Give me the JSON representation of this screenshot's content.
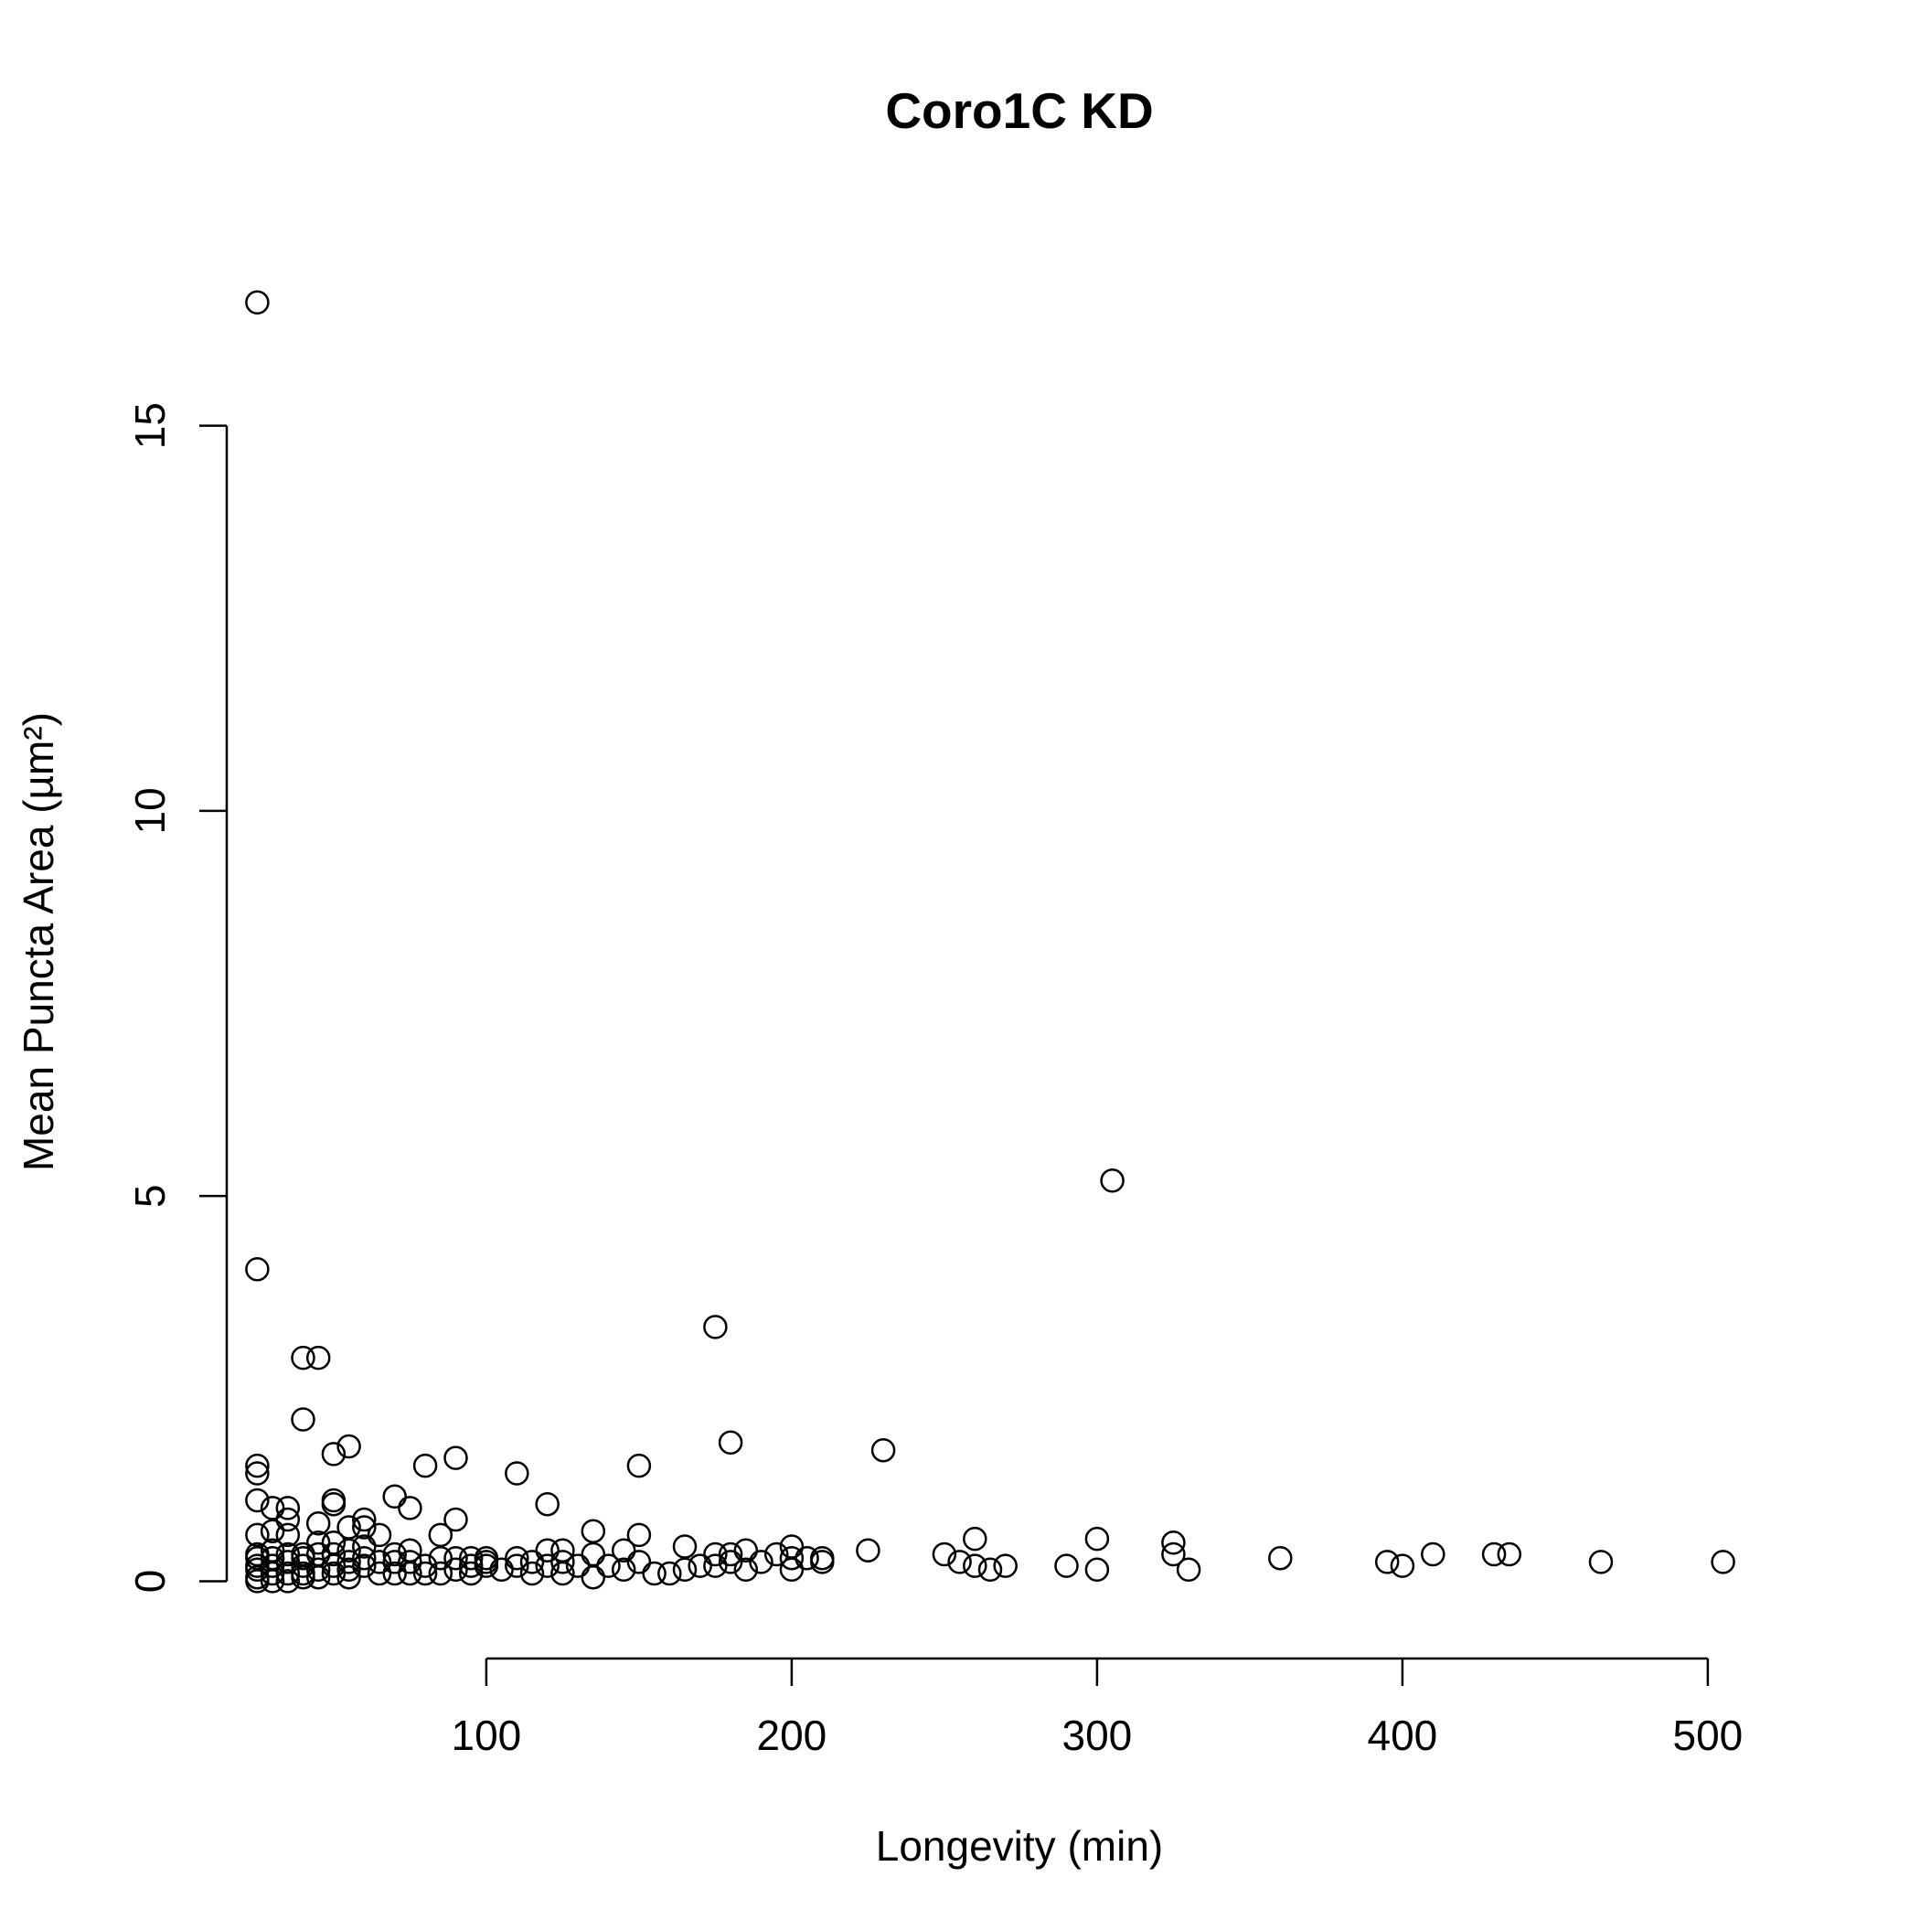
{
  "chart_data": {
    "type": "scatter",
    "title": "Coro1C KD",
    "xlabel": "Longevity (min)",
    "ylabel": "Mean Puncta Area (µm²)",
    "xlim": [
      15,
      515
    ],
    "ylim": [
      -0.6,
      17.5
    ],
    "xticks": [
      100,
      200,
      300,
      400,
      500
    ],
    "xtick_labels": [
      "100",
      "200",
      "300",
      "400",
      "500"
    ],
    "yticks": [
      0,
      5,
      10,
      15
    ],
    "ytick_labels": [
      "0",
      "5",
      "10",
      "15"
    ],
    "grid": false,
    "legend": "none",
    "marker": "open-circle",
    "series": [
      {
        "x": [
          25,
          25,
          25,
          25,
          25,
          25,
          25,
          25,
          25,
          25,
          25,
          25,
          30,
          30,
          30,
          30,
          30,
          30,
          30,
          35,
          35,
          35,
          35,
          35,
          35,
          35,
          40,
          40,
          40,
          40,
          40,
          40,
          40,
          45,
          45,
          45,
          45,
          45,
          45,
          50,
          50,
          50,
          50,
          50,
          50,
          50,
          55,
          55,
          55,
          55,
          55,
          55,
          60,
          60,
          60,
          60,
          60,
          65,
          65,
          65,
          70,
          70,
          70,
          70,
          75,
          75,
          75,
          75,
          80,
          80,
          80,
          85,
          85,
          85,
          90,
          90,
          90,
          90,
          95,
          95,
          95,
          100,
          100,
          100,
          105,
          110,
          110,
          110,
          115,
          115,
          120,
          120,
          120,
          125,
          125,
          125,
          130,
          135,
          135,
          135,
          140,
          145,
          145,
          150,
          150,
          150,
          155,
          160,
          165,
          165,
          170,
          175,
          175,
          175,
          180,
          180,
          180,
          185,
          185,
          190,
          195,
          200,
          200,
          200,
          205,
          210,
          210,
          225,
          230,
          250,
          255,
          260,
          260,
          265,
          270,
          290,
          300,
          300,
          305,
          325,
          325,
          330,
          360,
          395,
          400,
          410,
          430,
          435,
          465,
          505
        ],
        "y": [
          16.6,
          4.05,
          1.5,
          1.4,
          1.05,
          0.6,
          0.35,
          0.3,
          0.2,
          0.15,
          0.05,
          0.0,
          0.95,
          0.65,
          0.4,
          0.3,
          0.2,
          0.1,
          0.0,
          0.95,
          0.8,
          0.6,
          0.35,
          0.25,
          0.1,
          0.0,
          2.9,
          2.1,
          0.35,
          0.3,
          0.2,
          0.1,
          0.05,
          2.9,
          0.75,
          0.5,
          0.35,
          0.15,
          0.05,
          1.65,
          1.05,
          1.0,
          0.5,
          0.35,
          0.2,
          0.1,
          1.75,
          0.7,
          0.4,
          0.25,
          0.15,
          0.05,
          0.8,
          0.7,
          0.45,
          0.3,
          0.2,
          0.6,
          0.25,
          0.1,
          1.1,
          0.35,
          0.25,
          0.1,
          0.95,
          0.4,
          0.25,
          0.1,
          1.5,
          0.2,
          0.1,
          0.6,
          0.3,
          0.1,
          1.6,
          0.8,
          0.3,
          0.15,
          0.3,
          0.2,
          0.1,
          0.3,
          0.25,
          0.2,
          0.15,
          1.4,
          0.3,
          0.2,
          0.25,
          0.1,
          1.0,
          0.4,
          0.2,
          0.4,
          0.25,
          0.1,
          0.2,
          0.65,
          0.35,
          0.05,
          0.2,
          0.4,
          0.15,
          1.5,
          0.6,
          0.25,
          0.1,
          0.1,
          0.45,
          0.15,
          0.2,
          3.3,
          0.35,
          0.2,
          1.8,
          0.35,
          0.25,
          0.4,
          0.15,
          0.25,
          0.35,
          0.45,
          0.3,
          0.15,
          0.3,
          0.3,
          0.25,
          0.4,
          1.7,
          0.35,
          0.25,
          0.55,
          0.2,
          0.15,
          0.2,
          0.2,
          0.55,
          0.15,
          5.2,
          0.5,
          0.35,
          0.15,
          0.3,
          0.25,
          0.2,
          0.35,
          0.35,
          0.35,
          0.25,
          0.25
        ]
      }
    ]
  }
}
